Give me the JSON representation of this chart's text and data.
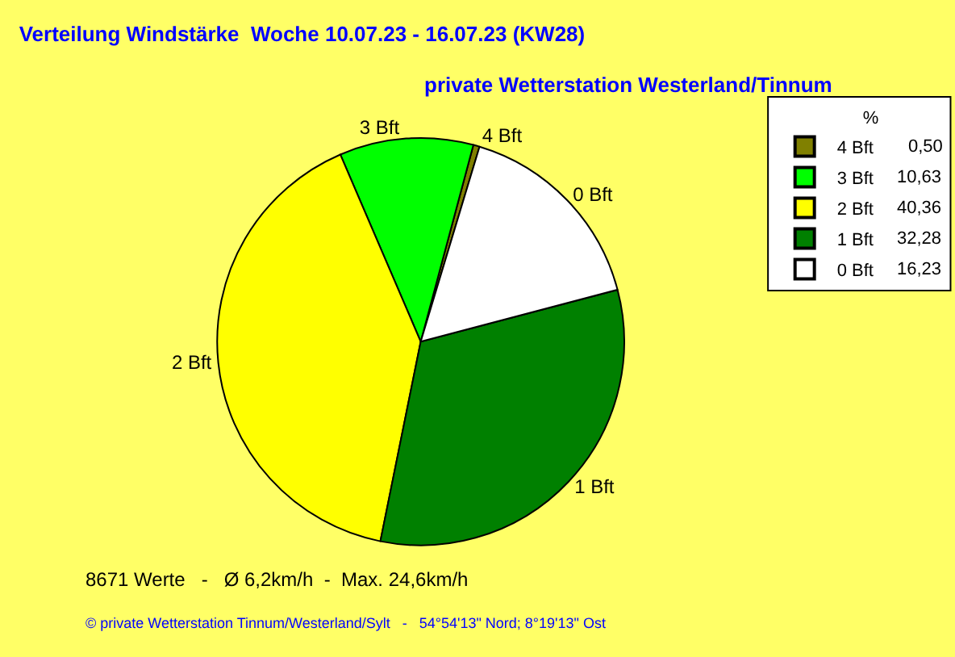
{
  "chart_data": {
    "type": "pie",
    "title": "Verteilung Windstärke  Woche 10.07.23 - 16.07.23 (KW28)",
    "subtitle": "private Wetterstation Westerland/Tinnum",
    "categories": [
      "4 Bft",
      "3 Bft",
      "2 Bft",
      "1 Bft",
      "0 Bft"
    ],
    "values": [
      0.5,
      10.63,
      40.36,
      32.28,
      16.23
    ],
    "value_labels": [
      "0,50",
      "10,63",
      "40,36",
      "32,28",
      "16,23"
    ],
    "colors": [
      "#808000",
      "#00ff00",
      "#ffff00",
      "#008000",
      "#ffffff"
    ],
    "legend_title": "%",
    "legend": "top right",
    "annotations": [
      "8671 Werte   -   Ø 6,2km/h  -  Max. 24,6km/h",
      "© private Wetterstation Tinnum/Westerland/Sylt   -   54°54'13\" Nord; 8°19'13\" Ost"
    ]
  }
}
